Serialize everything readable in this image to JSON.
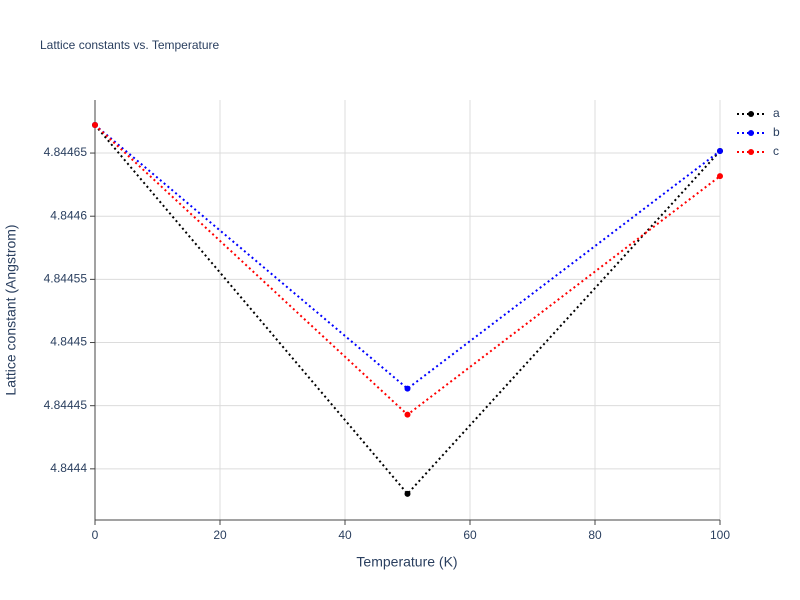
{
  "chart_data": {
    "type": "line",
    "title": "Lattice constants vs. Temperature",
    "x_label": "Temperature (K)",
    "y_label": "Lattice constant (Angstrom)",
    "x": [
      0,
      50,
      100
    ],
    "series": [
      {
        "name": "a",
        "color": "#000000",
        "values": [
          4.8446722,
          4.8443802,
          4.8446516
        ]
      },
      {
        "name": "b",
        "color": "#0000ff",
        "values": [
          4.8446722,
          4.8444635,
          4.8446516
        ]
      },
      {
        "name": "c",
        "color": "#ff0000",
        "values": [
          4.8446722,
          4.8444429,
          4.8446317
        ]
      }
    ],
    "xlim": [
      0,
      100
    ],
    "xticks": [
      0,
      20,
      40,
      60,
      80,
      100
    ],
    "ylim": [
      4.8443595,
      4.844692
    ],
    "yticks": [
      4.8444,
      4.84445,
      4.8445,
      4.84455,
      4.8446,
      4.84465
    ],
    "grid": true,
    "legend": "top-right",
    "line_style": "dotted"
  }
}
